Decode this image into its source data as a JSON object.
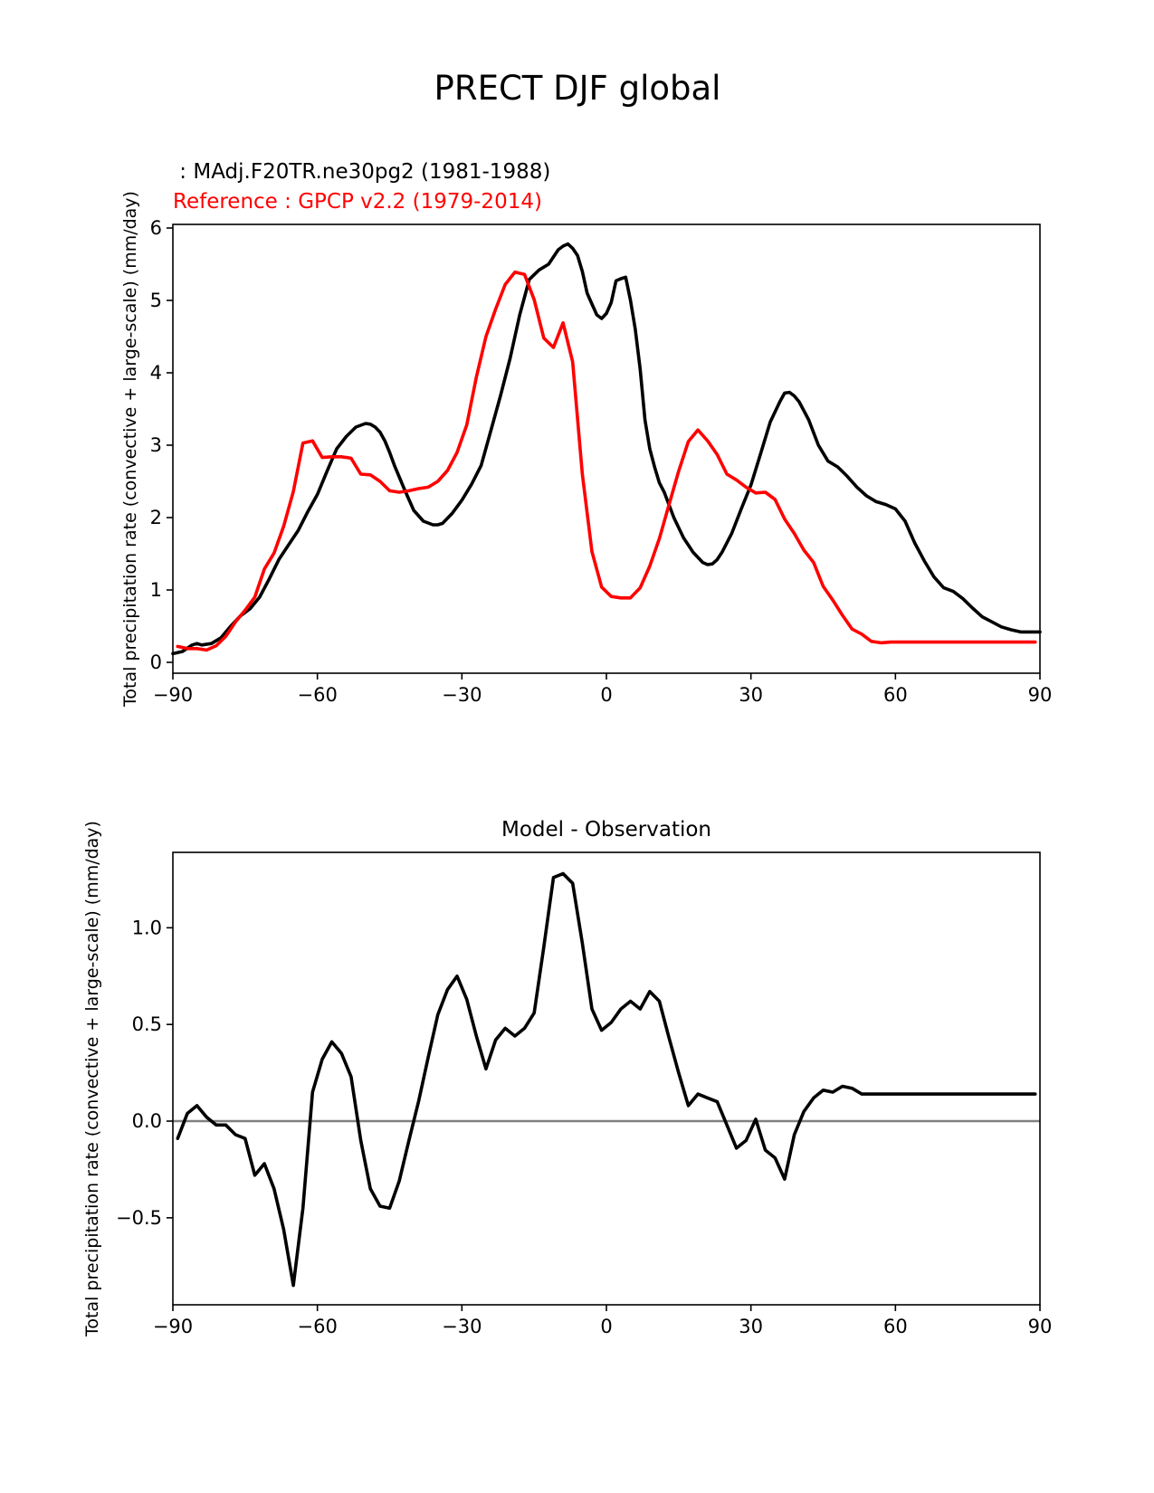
{
  "figure": {
    "title": "PRECT DJF global"
  },
  "chart_data": [
    {
      "type": "line",
      "legend_model": " : MAdj.F20TR.ne30pg2 (1981-1988)",
      "legend_reference": "Reference : GPCP v2.2 (1979-2014)",
      "xlabel": "",
      "ylabel": "Total precipitation rate (convective + large-scale) (mm/day)",
      "xlim": [
        -90,
        90
      ],
      "ylim": [
        -0.15,
        6.05
      ],
      "xticks": [
        -90,
        -60,
        -30,
        0,
        30,
        60,
        90
      ],
      "xtick_labels": [
        "−90",
        "−60",
        "−30",
        "0",
        "30",
        "60",
        "90"
      ],
      "yticks": [
        0,
        1,
        2,
        3,
        4,
        5,
        6
      ],
      "ytick_labels": [
        "0",
        "1",
        "2",
        "3",
        "4",
        "5",
        "6"
      ],
      "grid": false,
      "series": [
        {
          "name": "MAdj.F20TR.ne30pg2 (1981-1988)",
          "color": "#000000",
          "x": [
            -90,
            -88,
            -86,
            -85,
            -84,
            -82,
            -80,
            -78,
            -76,
            -74,
            -72,
            -70,
            -68,
            -66,
            -64,
            -62,
            -60,
            -58,
            -56,
            -54,
            -52,
            -50,
            -49,
            -48,
            -47,
            -46,
            -45,
            -44,
            -42,
            -40,
            -38,
            -36,
            -35,
            -34,
            -32,
            -30,
            -28,
            -26,
            -24,
            -22,
            -20,
            -18,
            -16,
            -14,
            -12,
            -10,
            -9,
            -8,
            -7,
            -6,
            -5,
            -4,
            -3,
            -2,
            -1,
            0,
            1,
            2,
            3,
            4,
            5,
            6,
            7,
            8,
            9,
            10,
            11,
            12,
            14,
            16,
            18,
            20,
            21,
            22,
            23,
            24,
            26,
            28,
            30,
            32,
            34,
            36,
            37,
            38,
            39,
            40,
            42,
            44,
            46,
            48,
            50,
            52,
            54,
            56,
            58,
            60,
            62,
            64,
            66,
            68,
            70,
            72,
            74,
            76,
            78,
            80,
            82,
            84,
            86,
            88,
            90
          ],
          "values": [
            0.12,
            0.15,
            0.24,
            0.26,
            0.24,
            0.26,
            0.34,
            0.5,
            0.64,
            0.74,
            0.9,
            1.15,
            1.42,
            1.62,
            1.82,
            2.08,
            2.32,
            2.64,
            2.95,
            3.12,
            3.25,
            3.3,
            3.29,
            3.25,
            3.18,
            3.06,
            2.9,
            2.72,
            2.4,
            2.1,
            1.95,
            1.9,
            1.9,
            1.92,
            2.06,
            2.24,
            2.46,
            2.72,
            3.2,
            3.68,
            4.2,
            4.8,
            5.29,
            5.42,
            5.5,
            5.7,
            5.75,
            5.78,
            5.72,
            5.62,
            5.4,
            5.1,
            4.95,
            4.8,
            4.75,
            4.82,
            4.97,
            5.27,
            5.3,
            5.32,
            5.0,
            4.6,
            4.05,
            3.35,
            2.95,
            2.7,
            2.48,
            2.35,
            2.0,
            1.72,
            1.52,
            1.38,
            1.35,
            1.36,
            1.42,
            1.52,
            1.78,
            2.12,
            2.45,
            2.88,
            3.32,
            3.6,
            3.72,
            3.73,
            3.68,
            3.6,
            3.35,
            3.0,
            2.78,
            2.7,
            2.57,
            2.42,
            2.3,
            2.22,
            2.18,
            2.12,
            1.95,
            1.65,
            1.4,
            1.18,
            1.03,
            0.98,
            0.88,
            0.75,
            0.63,
            0.56,
            0.49,
            0.45,
            0.42,
            0.42,
            0.42
          ]
        },
        {
          "name": "Reference : GPCP v2.2 (1979-2014)",
          "color": "#ff0000",
          "x": [
            -89,
            -87,
            -85,
            -83,
            -81,
            -79,
            -77,
            -75,
            -73,
            -71,
            -69,
            -67,
            -65,
            -63,
            -61,
            -59,
            -57,
            -55,
            -53,
            -51,
            -49,
            -47,
            -45,
            -43,
            -41,
            -39,
            -37,
            -35,
            -33,
            -31,
            -29,
            -27,
            -25,
            -23,
            -21,
            -19,
            -17,
            -15,
            -13,
            -11,
            -9,
            -7,
            -5,
            -3,
            -1,
            1,
            3,
            5,
            7,
            9,
            11,
            13,
            15,
            17,
            19,
            21,
            23,
            25,
            27,
            29,
            31,
            33,
            35,
            37,
            39,
            41,
            43,
            45,
            47,
            49,
            51,
            53,
            55,
            57,
            59,
            61,
            63,
            65,
            67,
            69,
            71,
            73,
            75,
            77,
            79,
            81,
            83,
            85,
            87,
            89
          ],
          "values": [
            0.22,
            0.19,
            0.19,
            0.17,
            0.23,
            0.36,
            0.56,
            0.72,
            0.9,
            1.29,
            1.51,
            1.88,
            2.36,
            3.03,
            3.06,
            2.83,
            2.84,
            2.84,
            2.82,
            2.6,
            2.59,
            2.5,
            2.37,
            2.35,
            2.37,
            2.4,
            2.42,
            2.5,
            2.65,
            2.9,
            3.28,
            3.94,
            4.5,
            4.88,
            5.22,
            5.39,
            5.36,
            5.01,
            4.48,
            4.35,
            4.69,
            4.15,
            2.6,
            1.53,
            1.04,
            0.91,
            0.89,
            0.89,
            1.03,
            1.33,
            1.71,
            2.18,
            2.64,
            3.05,
            3.21,
            3.06,
            2.87,
            2.6,
            2.52,
            2.42,
            2.34,
            2.35,
            2.25,
            1.98,
            1.78,
            1.55,
            1.38,
            1.05,
            0.86,
            0.65,
            0.46,
            0.39,
            0.29,
            0.27,
            0.28,
            0.28,
            0.28,
            0.28,
            0.28,
            0.28,
            0.28,
            0.28,
            0.28,
            0.28,
            0.28,
            0.28,
            0.28,
            0.28,
            0.28,
            0.28
          ]
        }
      ]
    },
    {
      "type": "line",
      "title": "Model - Observation",
      "xlabel": "",
      "ylabel": "Total precipitation rate (convective + large-scale) (mm/day)",
      "xlim": [
        -90,
        90
      ],
      "ylim": [
        -0.95,
        1.39
      ],
      "xticks": [
        -90,
        -60,
        -30,
        0,
        30,
        60,
        90
      ],
      "xtick_labels": [
        "−90",
        "−60",
        "−30",
        "0",
        "30",
        "60",
        "90"
      ],
      "yticks": [
        -0.5,
        0.0,
        0.5,
        1.0
      ],
      "ytick_labels": [
        "−0.5",
        "0.0",
        "0.5",
        "1.0"
      ],
      "grid": false,
      "zero_line": {
        "value": 0,
        "color": "#808080"
      },
      "series": [
        {
          "name": "Model - Observation",
          "color": "#000000",
          "x": [
            -89,
            -87,
            -85,
            -83,
            -81,
            -79,
            -77,
            -75,
            -73,
            -71,
            -69,
            -67,
            -65,
            -63,
            -61,
            -59,
            -57,
            -55,
            -53,
            -51,
            -49,
            -47,
            -45,
            -43,
            -41,
            -39,
            -37,
            -35,
            -33,
            -31,
            -29,
            -27,
            -25,
            -23,
            -21,
            -19,
            -17,
            -15,
            -13,
            -11,
            -9,
            -7,
            -5,
            -3,
            -1,
            1,
            3,
            5,
            7,
            9,
            11,
            13,
            15,
            17,
            19,
            21,
            23,
            25,
            27,
            29,
            31,
            33,
            35,
            37,
            39,
            41,
            43,
            45,
            47,
            49,
            51,
            53,
            55,
            57,
            59,
            61,
            63,
            65,
            67,
            69,
            71,
            73,
            75,
            77,
            79,
            81,
            83,
            85,
            87,
            89
          ],
          "values": [
            -0.09,
            0.04,
            0.08,
            0.02,
            -0.02,
            -0.02,
            -0.07,
            -0.09,
            -0.28,
            -0.22,
            -0.35,
            -0.56,
            -0.85,
            -0.45,
            0.15,
            0.32,
            0.41,
            0.35,
            0.23,
            -0.1,
            -0.35,
            -0.44,
            -0.45,
            -0.31,
            -0.1,
            0.1,
            0.33,
            0.55,
            0.68,
            0.75,
            0.63,
            0.44,
            0.27,
            0.42,
            0.48,
            0.44,
            0.48,
            0.56,
            0.9,
            1.26,
            1.28,
            1.23,
            0.92,
            0.58,
            0.47,
            0.51,
            0.58,
            0.62,
            0.58,
            0.67,
            0.62,
            0.43,
            0.25,
            0.08,
            0.14,
            0.12,
            0.1,
            -0.02,
            -0.14,
            -0.1,
            0.01,
            -0.15,
            -0.19,
            -0.3,
            -0.07,
            0.05,
            0.12,
            0.16,
            0.15,
            0.18,
            0.17,
            0.14,
            0.14,
            0.14,
            0.14,
            0.14,
            0.14,
            0.14,
            0.14,
            0.14,
            0.14,
            0.14,
            0.14,
            0.14,
            0.14,
            0.14,
            0.14,
            0.14,
            0.14,
            0.14
          ]
        }
      ]
    }
  ]
}
